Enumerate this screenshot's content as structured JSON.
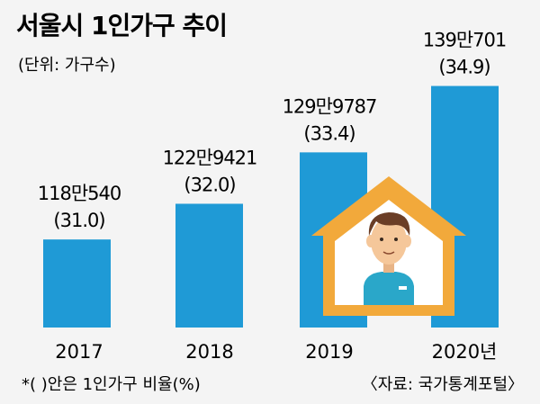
{
  "header": {
    "title": "서울시 1인가구 추이",
    "unit": "(단위: 가구수)"
  },
  "chart_data": {
    "type": "bar",
    "categories": [
      "2017",
      "2018",
      "2019",
      "2020년"
    ],
    "values": [
      1180540,
      1229421,
      1299787,
      1390701
    ],
    "value_labels": [
      "118만540",
      "122만9421",
      "129만9787",
      "139만701"
    ],
    "ratio_labels": [
      "(31.0)",
      "(32.0)",
      "(33.4)",
      "(34.9)"
    ],
    "ratio_values": [
      31.0,
      32.0,
      33.4,
      34.9
    ],
    "ylim": [
      1060000,
      1400000
    ],
    "grid": false,
    "bar_color": "#1f9ad6",
    "background": "#f4f4f4"
  },
  "footer": {
    "note": "*(  )안은 1인가구 비율(%)",
    "source": "〈자료: 국가통계포털〉"
  },
  "illustration": {
    "icon": "house-person-icon",
    "house_color": "#f2a93b",
    "house_inner": "#ffffff",
    "skin_color": "#f5c79a",
    "hair_color": "#6b3e26",
    "shirt_color": "#2aa7c9"
  }
}
